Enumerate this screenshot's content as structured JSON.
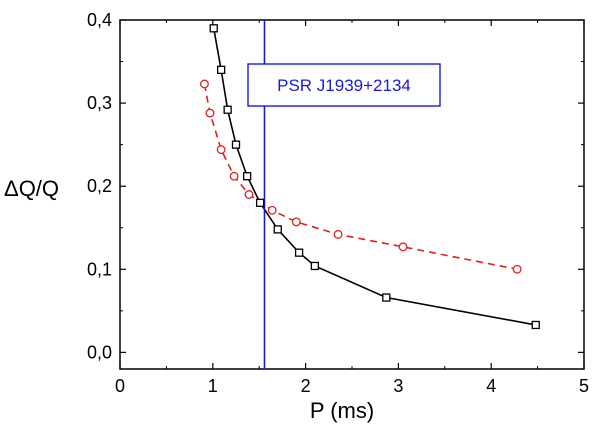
{
  "chart_data": {
    "type": "line",
    "xlabel": "P (ms)",
    "ylabel": "ΔQ/Q",
    "xlim": [
      0,
      5
    ],
    "ylim": [
      -0.02,
      0.4
    ],
    "xticks": [
      0,
      1,
      2,
      3,
      4,
      5
    ],
    "xtick_labels": [
      "0",
      "1",
      "2",
      "3",
      "4",
      "5"
    ],
    "yticks": [
      0.0,
      0.1,
      0.2,
      0.3,
      0.4
    ],
    "ytick_labels": [
      "0,0",
      "0,1",
      "0,2",
      "0,3",
      "0,4"
    ],
    "grid": false,
    "series": [
      {
        "color": "#000000",
        "line_style": "solid",
        "marker": "square",
        "x": [
          1.01,
          1.09,
          1.16,
          1.25,
          1.37,
          1.51,
          1.7,
          1.93,
          2.1,
          2.87,
          4.48
        ],
        "y": [
          0.39,
          0.34,
          0.292,
          0.25,
          0.212,
          0.18,
          0.148,
          0.12,
          0.104,
          0.066,
          0.033
        ]
      },
      {
        "color": "#e0201a",
        "line_style": "dashed",
        "marker": "circle",
        "x": [
          0.91,
          0.97,
          1.09,
          1.23,
          1.39,
          1.64,
          1.9,
          2.35,
          3.05,
          4.28
        ],
        "y": [
          0.323,
          0.288,
          0.244,
          0.212,
          0.19,
          0.171,
          0.157,
          0.142,
          0.127,
          0.1
        ]
      }
    ],
    "annotations": [
      {
        "text": "PSR J1939+2134",
        "x": 1.557,
        "color": "#1a1adc",
        "kind": "vertical-line-with-label"
      }
    ]
  }
}
